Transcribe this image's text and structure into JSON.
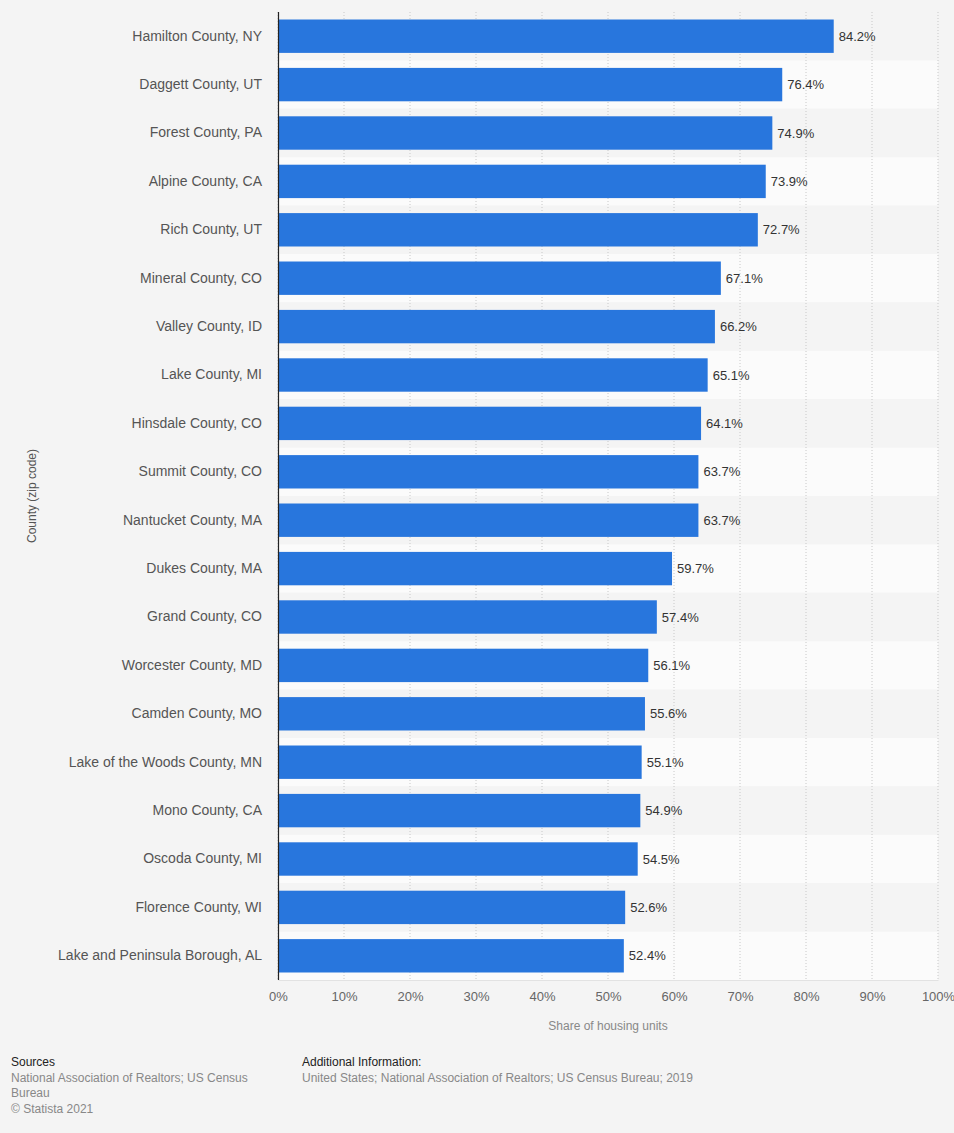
{
  "chart_data": {
    "type": "bar",
    "orientation": "horizontal",
    "x_label": "Share of housing units",
    "y_label": "County (zip code)",
    "categories": [
      "Hamilton County, NY",
      "Daggett County, UT",
      "Forest County, PA",
      "Alpine County, CA",
      "Rich County, UT",
      "Mineral County, CO",
      "Valley County, ID",
      "Lake County, MI",
      "Hinsdale County, CO",
      "Summit County, CO",
      "Nantucket County, MA",
      "Dukes County, MA",
      "Grand County, CO",
      "Worcester County, MD",
      "Camden County, MO",
      "Lake of the Woods County, MN",
      "Mono County, CA",
      "Oscoda County, MI",
      "Florence County, WI",
      "Lake and Peninsula Borough, AL"
    ],
    "values": [
      84.2,
      76.4,
      74.9,
      73.9,
      72.7,
      67.1,
      66.2,
      65.1,
      64.1,
      63.7,
      63.7,
      59.7,
      57.4,
      56.1,
      55.6,
      55.1,
      54.9,
      54.5,
      52.6,
      52.4
    ],
    "value_labels": [
      "84.2%",
      "76.4%",
      "74.9%",
      "73.9%",
      "72.7%",
      "67.1%",
      "66.2%",
      "65.1%",
      "64.1%",
      "63.7%",
      "63.7%",
      "59.7%",
      "57.4%",
      "56.1%",
      "55.6%",
      "55.1%",
      "54.9%",
      "54.5%",
      "52.6%",
      "52.4%"
    ],
    "color": "#2876dd",
    "xlim": [
      0,
      100
    ],
    "xticks": [
      {
        "value": 0,
        "label": "0%"
      },
      {
        "value": 10,
        "label": "10%"
      },
      {
        "value": 20,
        "label": "20%"
      },
      {
        "value": 30,
        "label": "30%"
      },
      {
        "value": 40,
        "label": "40%"
      },
      {
        "value": 50,
        "label": "50%"
      },
      {
        "value": 60,
        "label": "60%"
      },
      {
        "value": 70,
        "label": "70%"
      },
      {
        "value": 80,
        "label": "80%"
      },
      {
        "value": 90,
        "label": "90%"
      },
      {
        "value": 100,
        "label": "100%"
      }
    ],
    "grid": true,
    "data_labels": true,
    "annotations": [
      {
        "heading": "Sources",
        "text": [
          "National Association of Realtors; US Census Bureau",
          "© Statista 2021"
        ]
      },
      {
        "heading": "Additional Information:",
        "text": [
          "United States; National Association of Realtors; US Census Bureau; 2019"
        ]
      }
    ]
  }
}
